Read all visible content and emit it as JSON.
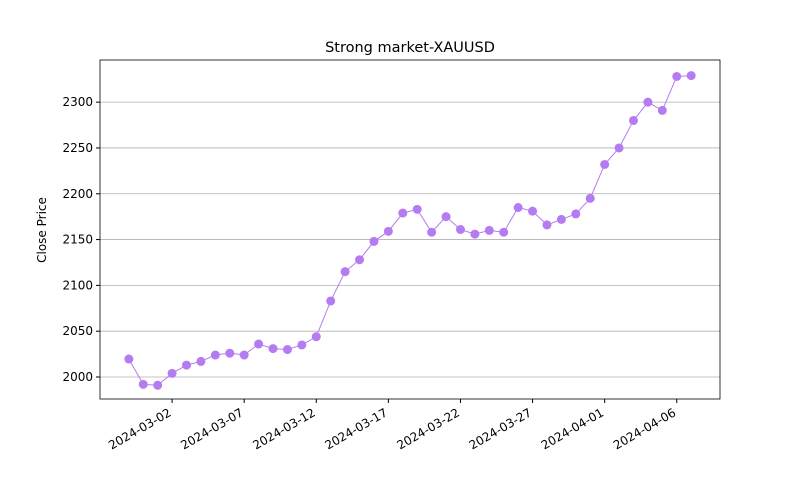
{
  "chart_data": {
    "type": "line",
    "title": "Strong market-XAUUSD",
    "y_label": "Close Price",
    "x": [
      "2024-02-28",
      "2024-02-29",
      "2024-03-01",
      "2024-03-02",
      "2024-03-03",
      "2024-03-04",
      "2024-03-05",
      "2024-03-06",
      "2024-03-07",
      "2024-03-08",
      "2024-03-09",
      "2024-03-10",
      "2024-03-11",
      "2024-03-12",
      "2024-03-13",
      "2024-03-14",
      "2024-03-15",
      "2024-03-16",
      "2024-03-17",
      "2024-03-18",
      "2024-03-19",
      "2024-03-20",
      "2024-03-21",
      "2024-03-22",
      "2024-03-23",
      "2024-03-24",
      "2024-03-25",
      "2024-03-26",
      "2024-03-27",
      "2024-03-28",
      "2024-03-29",
      "2024-03-30",
      "2024-03-31",
      "2024-04-01",
      "2024-04-02",
      "2024-04-03",
      "2024-04-04",
      "2024-04-05",
      "2024-04-06",
      "2024-04-07"
    ],
    "series": [
      {
        "name": "XAUUSD",
        "color": "#b57cf2",
        "values": [
          2019.6,
          1992,
          1991,
          2004,
          2013,
          2017,
          2024,
          2026,
          2024,
          2036,
          2031,
          2030,
          2035,
          2044,
          2083,
          2115,
          2128,
          2148,
          2159,
          2179,
          2183,
          2158,
          2175,
          2161,
          2156,
          2160,
          2158,
          2185,
          2181,
          2166,
          2172,
          2178,
          2195,
          2232,
          2250,
          2280,
          2300,
          2291,
          2328,
          2329
        ]
      }
    ],
    "xlim": [
      "2024-02-26",
      "2024-04-09"
    ],
    "xticks": [
      "2024-03-02",
      "2024-03-07",
      "2024-03-12",
      "2024-03-17",
      "2024-03-22",
      "2024-03-27",
      "2024-04-01",
      "2024-04-06"
    ],
    "ylim": [
      1976,
      2346
    ],
    "yticks": [
      2000,
      2050,
      2100,
      2150,
      2200,
      2250,
      2300
    ],
    "grid": "y"
  }
}
